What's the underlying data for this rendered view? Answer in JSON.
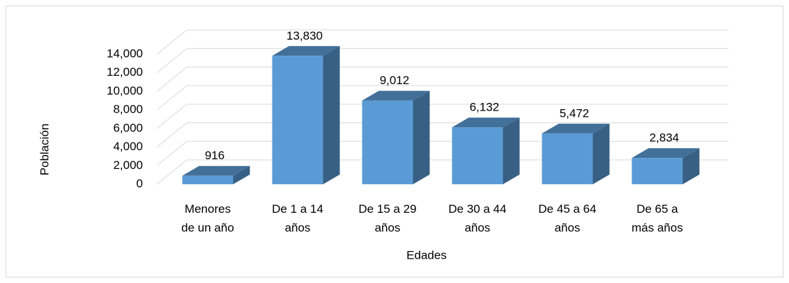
{
  "chart_data": {
    "type": "bar3d",
    "x_label": "Edades",
    "y_label": "Población",
    "categories": [
      "Menores\nde un año",
      "De 1 a 14\naños",
      "De 15 a 29\naños",
      "De 30 a 44\naños",
      "De 45 a 64\naños",
      "De 65 a\nmás años"
    ],
    "values": [
      916,
      13830,
      9012,
      6132,
      5472,
      2834
    ],
    "value_labels": [
      "916",
      "13,830",
      "9,012",
      "6,132",
      "5,472",
      "2,834"
    ],
    "color": "#5b9bd5",
    "ylim": [
      0,
      14000
    ],
    "yticks": [
      0,
      {
        "value": 2000,
        "label": "2,000"
      },
      {
        "value": 4000,
        "label": "4,000"
      },
      {
        "value": 6000,
        "label": "6,000"
      },
      {
        "value": 8000,
        "label": "8,000"
      },
      {
        "value": 10000,
        "label": "10,000"
      },
      {
        "value": 12000,
        "label": "12,000"
      },
      {
        "value": 14000,
        "label": "14,000"
      }
    ],
    "grid": true
  }
}
